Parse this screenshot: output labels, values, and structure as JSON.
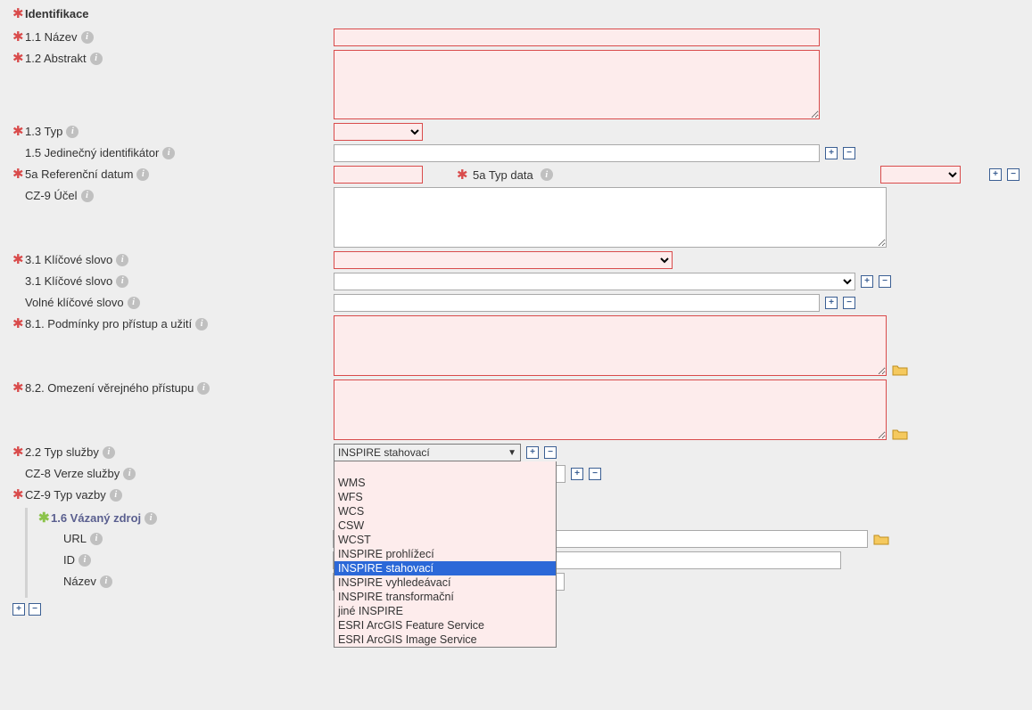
{
  "colors": {
    "page_bg": "#eeeeee",
    "required_border": "#d94b4b",
    "required_bg": "#fdecec",
    "plusminus_border": "#3b5f93",
    "dropdown_selected_bg": "#2b68d8",
    "subgroup_hdr": "#5a5f8f",
    "text": "#333333",
    "info_bg": "#c0c0c0"
  },
  "section_header": "Identifikace",
  "fields": {
    "nazev": {
      "label": "1.1 Název",
      "required": true,
      "value": ""
    },
    "abstrakt": {
      "label": "1.2 Abstrakt",
      "required": true,
      "value": ""
    },
    "typ": {
      "label": "1.3 Typ",
      "required": true,
      "value": ""
    },
    "uid": {
      "label": "1.5 Jedinečný identifikátor",
      "required": false,
      "value": ""
    },
    "ref_datum": {
      "label": "5a Referenční datum",
      "required": true,
      "value": ""
    },
    "typ_data": {
      "label": "5a Typ data",
      "required": true,
      "value": ""
    },
    "ucel": {
      "label": "CZ-9 Účel",
      "required": false,
      "value": ""
    },
    "kw1": {
      "label": "3.1 Klíčové slovo",
      "required": true,
      "value": ""
    },
    "kw2": {
      "label": "3.1 Klíčové slovo",
      "required": false,
      "value": ""
    },
    "kw_free": {
      "label": "Volné klíčové slovo",
      "required": false,
      "value": ""
    },
    "podminky": {
      "label": "8.1. Podmínky pro přístup a užití",
      "required": true,
      "value": ""
    },
    "omezeni": {
      "label": "8.2. Omezení věrejného přístupu",
      "required": true,
      "value": ""
    },
    "typ_sluzby": {
      "label": "2.2 Typ služby",
      "required": true,
      "value": "INSPIRE stahovací"
    },
    "verze": {
      "label": "CZ-8 Verze služby",
      "required": false,
      "value": ""
    },
    "typ_vazby": {
      "label": "CZ-9 Typ vazby",
      "required": true,
      "value": ""
    }
  },
  "typ_sluzby_options": [
    "WMS",
    "WFS",
    "WCS",
    "CSW",
    "WCST",
    "INSPIRE prohlížecí",
    "INSPIRE stahovací",
    "INSPIRE vyhledeávací",
    "INSPIRE transformační",
    "jiné INSPIRE",
    "ESRI ArcGIS Feature Service",
    "ESRI ArcGIS Image Service"
  ],
  "typ_sluzby_selected_index": 6,
  "vazany_zdroj": {
    "header": "1.6 Vázaný zdroj",
    "url": {
      "label": "URL",
      "value": ""
    },
    "id": {
      "label": "ID",
      "value": ""
    },
    "nazev": {
      "label": "Název",
      "value": ""
    }
  }
}
